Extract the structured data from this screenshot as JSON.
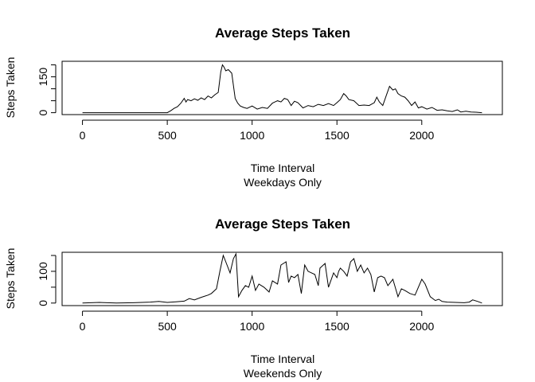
{
  "chart_data": [
    {
      "type": "line",
      "title": "Average Steps Taken",
      "xlabel": "Time Interval",
      "subtitle": "Weekdays Only",
      "ylabel": "Steps Taken",
      "xlim": [
        -120,
        2475
      ],
      "ylim": [
        -8,
        215
      ],
      "xticks": [
        0,
        500,
        1000,
        1500,
        2000
      ],
      "yticks": [
        0,
        50,
        100,
        150,
        200
      ],
      "yticklabels": [
        "0",
        "",
        "",
        "150",
        ""
      ],
      "grid": false,
      "series": [
        {
          "color": "#000000",
          "x": [
            0,
            100,
            200,
            300,
            400,
            500,
            520,
            540,
            560,
            580,
            600,
            610,
            620,
            640,
            660,
            680,
            700,
            720,
            740,
            760,
            780,
            800,
            815,
            825,
            835,
            845,
            860,
            880,
            900,
            915,
            930,
            950,
            970,
            1000,
            1030,
            1060,
            1090,
            1120,
            1150,
            1170,
            1190,
            1210,
            1230,
            1250,
            1270,
            1300,
            1330,
            1360,
            1390,
            1420,
            1450,
            1480,
            1500,
            1520,
            1540,
            1555,
            1570,
            1600,
            1630,
            1660,
            1690,
            1720,
            1735,
            1750,
            1770,
            1790,
            1810,
            1830,
            1845,
            1860,
            1880,
            1900,
            1920,
            1940,
            1960,
            1980,
            2000,
            2030,
            2060,
            2090,
            2120,
            2150,
            2180,
            2210,
            2230,
            2260,
            2290,
            2320,
            2355
          ],
          "values": [
            0,
            0,
            0,
            0,
            0,
            0,
            8,
            18,
            25,
            40,
            60,
            45,
            55,
            50,
            58,
            52,
            62,
            55,
            70,
            62,
            75,
            85,
            170,
            200,
            190,
            175,
            180,
            165,
            60,
            40,
            28,
            22,
            18,
            28,
            15,
            22,
            18,
            40,
            50,
            45,
            60,
            55,
            30,
            48,
            42,
            20,
            30,
            25,
            35,
            30,
            38,
            30,
            42,
            55,
            80,
            70,
            55,
            50,
            30,
            32,
            30,
            42,
            65,
            45,
            30,
            70,
            110,
            95,
            100,
            80,
            70,
            65,
            50,
            30,
            45,
            20,
            25,
            15,
            22,
            10,
            12,
            8,
            5,
            12,
            3,
            6,
            3,
            2,
            0
          ]
        }
      ]
    },
    {
      "type": "line",
      "title": "Average Steps Taken",
      "xlabel": "Time Interval",
      "subtitle": "Weekends Only",
      "ylabel": "Steps Taken",
      "xlim": [
        -120,
        2475
      ],
      "ylim": [
        -8,
        160
      ],
      "xticks": [
        0,
        500,
        1000,
        1500,
        2000
      ],
      "yticks": [
        0,
        50,
        100,
        150
      ],
      "yticklabels": [
        "0",
        "",
        "100",
        ""
      ],
      "grid": false,
      "series": [
        {
          "color": "#000000",
          "x": [
            0,
            100,
            200,
            300,
            400,
            450,
            500,
            550,
            600,
            630,
            660,
            700,
            740,
            760,
            790,
            810,
            830,
            845,
            870,
            890,
            905,
            920,
            940,
            960,
            980,
            1000,
            1020,
            1040,
            1070,
            1100,
            1120,
            1150,
            1170,
            1200,
            1215,
            1230,
            1250,
            1270,
            1290,
            1310,
            1330,
            1350,
            1370,
            1390,
            1400,
            1430,
            1450,
            1480,
            1500,
            1510,
            1520,
            1540,
            1560,
            1580,
            1600,
            1620,
            1640,
            1660,
            1680,
            1700,
            1720,
            1740,
            1760,
            1780,
            1800,
            1830,
            1860,
            1880,
            1900,
            1930,
            1960,
            2000,
            2020,
            2050,
            2080,
            2100,
            2120,
            2150,
            2200,
            2250,
            2280,
            2300,
            2330,
            2355
          ],
          "values": [
            0,
            2,
            0,
            1,
            3,
            5,
            2,
            4,
            6,
            14,
            10,
            18,
            25,
            30,
            45,
            100,
            150,
            130,
            95,
            140,
            155,
            20,
            40,
            55,
            50,
            85,
            40,
            60,
            50,
            35,
            70,
            60,
            120,
            130,
            65,
            85,
            80,
            90,
            30,
            120,
            100,
            95,
            90,
            55,
            110,
            125,
            50,
            95,
            80,
            100,
            110,
            100,
            85,
            130,
            140,
            100,
            120,
            95,
            110,
            90,
            35,
            80,
            85,
            80,
            55,
            75,
            20,
            45,
            40,
            30,
            25,
            75,
            60,
            20,
            8,
            12,
            5,
            3,
            2,
            1,
            3,
            10,
            5,
            0
          ]
        }
      ]
    }
  ]
}
